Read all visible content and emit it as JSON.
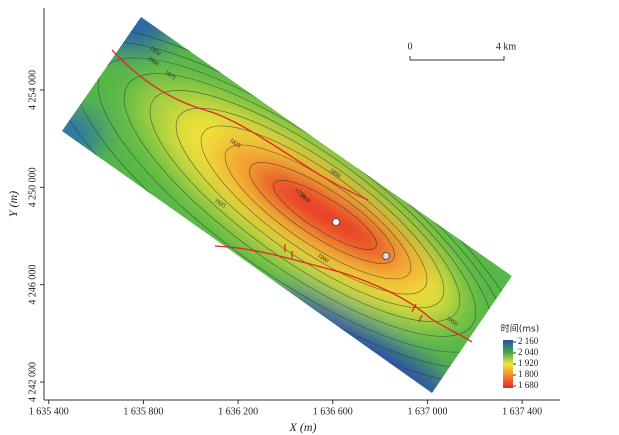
{
  "chart_data": {
    "type": "map",
    "xlabel": "X (m)",
    "ylabel": "Y (m)",
    "xlim": [
      1635380,
      1637560
    ],
    "ylim": [
      4241260,
      4257370
    ],
    "xticks": [
      {
        "value": 1635400,
        "label": "1 635 400"
      },
      {
        "value": 1635800,
        "label": "1 635 800"
      },
      {
        "value": 1636200,
        "label": "1 636 200"
      },
      {
        "value": 1636600,
        "label": "1 636 600"
      },
      {
        "value": 1637000,
        "label": "1 637 000"
      },
      {
        "value": 1637400,
        "label": "1 637 400"
      }
    ],
    "yticks": [
      {
        "value": 4242000,
        "label": "4 242 000"
      },
      {
        "value": 4246000,
        "label": "4 246 000"
      },
      {
        "value": 4250000,
        "label": "4 250 000"
      },
      {
        "value": 4254000,
        "label": "4 254 000"
      }
    ],
    "colorbar": {
      "title": "时间(ms)",
      "ticks": [
        {
          "value": 2160,
          "label": "2 160"
        },
        {
          "value": 2040,
          "label": "2 040"
        },
        {
          "value": 1920,
          "label": "1 920"
        },
        {
          "value": 1800,
          "label": "1 800"
        },
        {
          "value": 1680,
          "label": "1 680"
        }
      ],
      "colors": [
        "#2a4fa8",
        "#3aa84a",
        "#f2e33a",
        "#f08a2a",
        "#e8222a"
      ]
    },
    "scale_bar": {
      "start": "0",
      "end": "4 km"
    },
    "contour_labels": [
      "1950",
      "1875",
      "1825",
      "1800",
      "1750",
      "1850",
      "1900",
      "1925",
      "2000",
      "1850"
    ],
    "fault_color": "#e8222a"
  }
}
